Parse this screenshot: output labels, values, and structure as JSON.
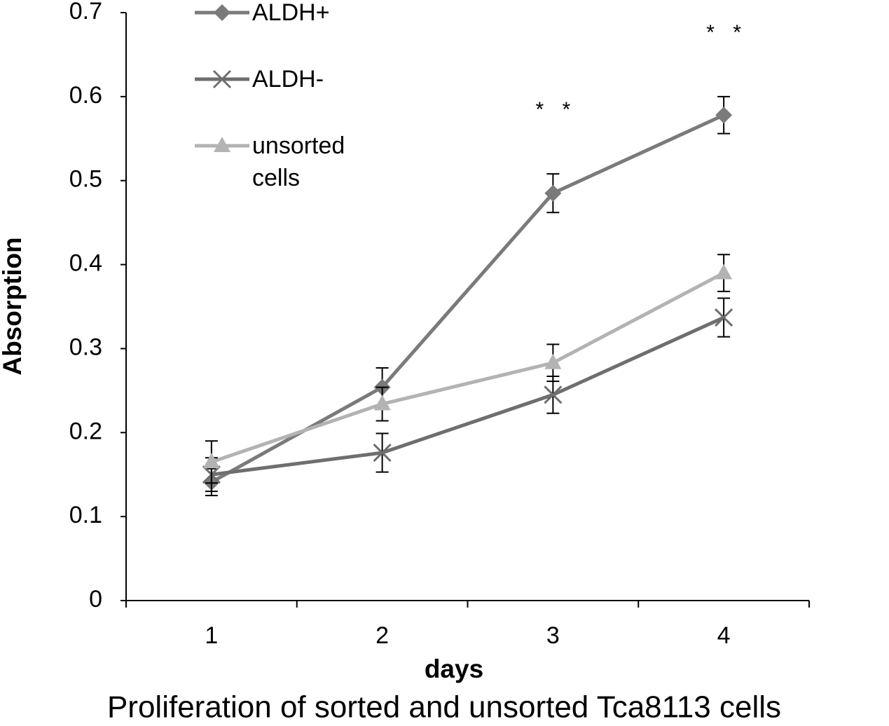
{
  "chart_data": {
    "type": "line",
    "title": "Proliferation of sorted and unsorted Tca8113 cells",
    "xlabel": "days",
    "ylabel": "Absorption",
    "categories": [
      "1",
      "2",
      "3",
      "4"
    ],
    "ylim": [
      0,
      0.7
    ],
    "yticks": [
      0,
      0.1,
      0.2,
      0.3,
      0.4,
      0.5,
      0.6,
      0.7
    ],
    "series": [
      {
        "name": "ALDH+",
        "color": "#7a7a7a",
        "marker": "diamond",
        "values": [
          0.141,
          0.254,
          0.485,
          0.578
        ],
        "errors": [
          0.016,
          0.023,
          0.023,
          0.022
        ]
      },
      {
        "name": "ALDH-",
        "color": "#6e6e6e",
        "marker": "x",
        "values": [
          0.15,
          0.176,
          0.245,
          0.337
        ],
        "errors": [
          0.02,
          0.023,
          0.022,
          0.023
        ]
      },
      {
        "name": "unsorted cells",
        "color": "#b3b3b3",
        "marker": "triangle",
        "values": [
          0.165,
          0.234,
          0.283,
          0.39
        ],
        "errors": [
          0.025,
          0.02,
          0.022,
          0.022
        ]
      }
    ],
    "annotations": [
      null,
      null,
      "* *",
      "* *"
    ]
  }
}
